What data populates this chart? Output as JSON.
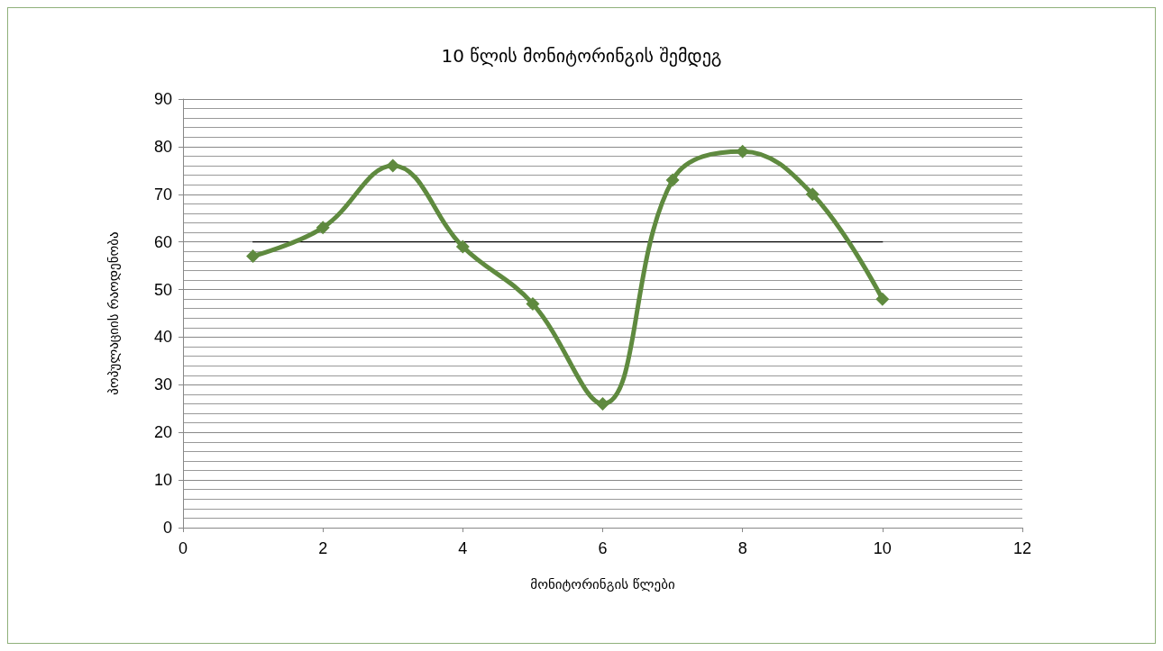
{
  "chart_data": {
    "type": "line",
    "title": "10 წლის მონიტორინგის შემდეგ",
    "xlabel": "მონიტორინგის წლები",
    "ylabel": "პოპულაციის რაოდენობა",
    "x": [
      1,
      2,
      3,
      4,
      5,
      6,
      7,
      8,
      9,
      10
    ],
    "series": [
      {
        "color": "#5f8a3f",
        "values": [
          57,
          63,
          76,
          59,
          47,
          26,
          73,
          79,
          70,
          48
        ]
      },
      {
        "color": "#000000",
        "x": [
          1,
          10
        ],
        "values": [
          60,
          60
        ],
        "marker": "none"
      }
    ],
    "xlim": [
      0,
      12
    ],
    "xticks": [
      0,
      2,
      4,
      6,
      8,
      10,
      12
    ],
    "ylim": [
      0,
      90
    ],
    "yticks": [
      0,
      10,
      20,
      30,
      40,
      50,
      60,
      70,
      80,
      90
    ],
    "grid": "y",
    "marker": "diamond",
    "line_style": "solid"
  }
}
